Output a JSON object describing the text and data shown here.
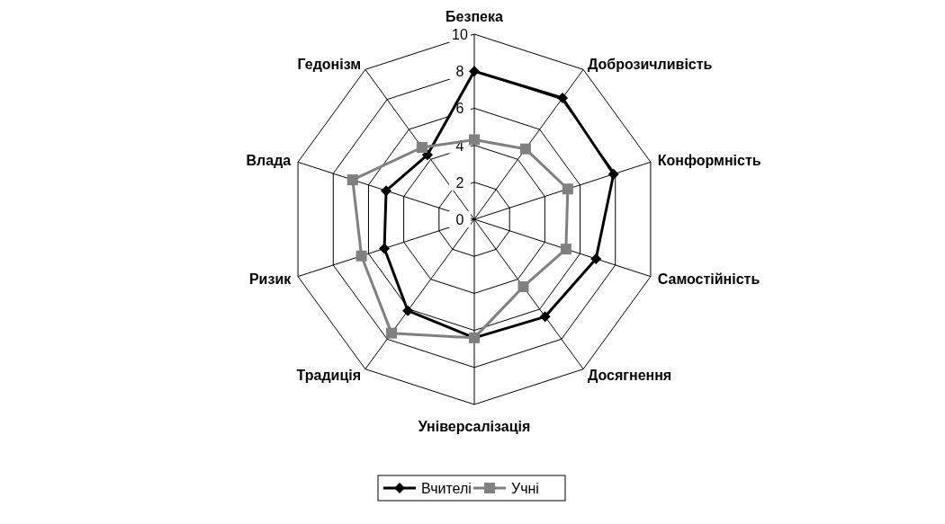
{
  "chart_data": {
    "type": "radar",
    "categories": [
      "Безпека",
      "Доброзичливість",
      "Конформність",
      "Самостійність",
      "Досягнення",
      "Універсалізація",
      "Традиція",
      "Ризик",
      "Влада",
      "Гедонізм"
    ],
    "series": [
      {
        "name": "Вчителі",
        "color": "#000000",
        "marker": "diamond",
        "values": [
          8,
          8.1,
          7.9,
          6.9,
          6.5,
          6.4,
          6.1,
          5.1,
          5,
          4.3
        ]
      },
      {
        "name": "Учні",
        "color": "#808080",
        "marker": "square",
        "values": [
          4.3,
          4.7,
          5.3,
          5.2,
          4.5,
          6.4,
          7.6,
          6.4,
          6.9,
          4.8
        ]
      }
    ],
    "ylim": [
      0,
      10
    ],
    "yticks": [
      0,
      2,
      4,
      6,
      8,
      10
    ],
    "grid": true,
    "legend": "bottom"
  }
}
